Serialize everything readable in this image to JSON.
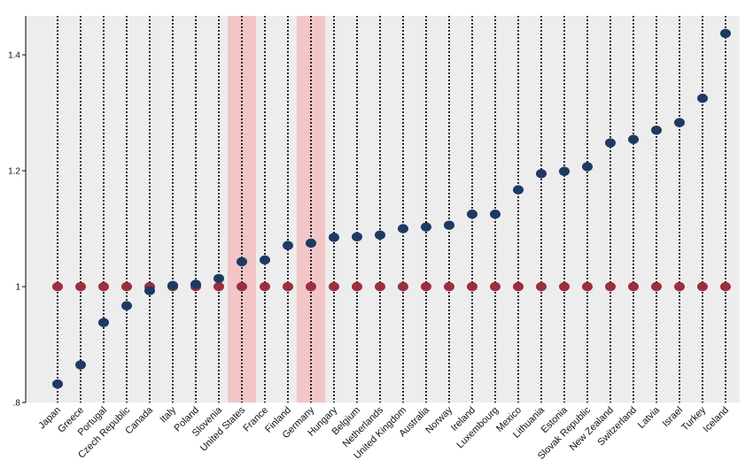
{
  "chart_data": {
    "type": "scatter",
    "categories": [
      "Japan",
      "Greece",
      "Portugal",
      "Czech Republic",
      "Canada",
      "Italy",
      "Poland",
      "Slovenia",
      "United States",
      "France",
      "Finland",
      "Germany",
      "Hungary",
      "Belgium",
      "Netherlands",
      "United Kingdom",
      "Australia",
      "Norway",
      "Ireland",
      "Luxembourg",
      "Mexico",
      "Lithuania",
      "Estonia",
      "Slovak Republic",
      "New Zealand",
      "Switzerland",
      "Latvia",
      "Israel",
      "Turkey",
      "Iceland"
    ],
    "series": [
      {
        "values": [
          0.832,
          0.865,
          0.938,
          0.967,
          0.993,
          1.002,
          1.004,
          1.014,
          1.043,
          1.046,
          1.071,
          1.075,
          1.085,
          1.086,
          1.089,
          1.1,
          1.103,
          1.106,
          1.125,
          1.125,
          1.167,
          1.195,
          1.199,
          1.207,
          1.248,
          1.254,
          1.27,
          1.283,
          1.325,
          1.437
        ],
        "color": "#1d3a63"
      },
      {
        "values": [
          1,
          1,
          1,
          1,
          1,
          1,
          1,
          1,
          1,
          1,
          1,
          1,
          1,
          1,
          1,
          1,
          1,
          1,
          1,
          1,
          1,
          1,
          1,
          1,
          1,
          1,
          1,
          1,
          1,
          1
        ],
        "color": "#9b2f3d"
      }
    ],
    "highlighted_categories": [
      "United States",
      "Germany"
    ],
    "highlight_color": "#f2c6c7",
    "yticks": [
      0.8,
      1.0,
      1.2,
      1.4
    ],
    "ytick_labels": [
      ".8",
      "1",
      "1.2",
      "1.4"
    ],
    "ylim": [
      0.8,
      1.47
    ],
    "plot_background": "#ededed",
    "grid": "dotted vertical lines at each category",
    "xlabel": "",
    "ylabel": "",
    "title": ""
  }
}
